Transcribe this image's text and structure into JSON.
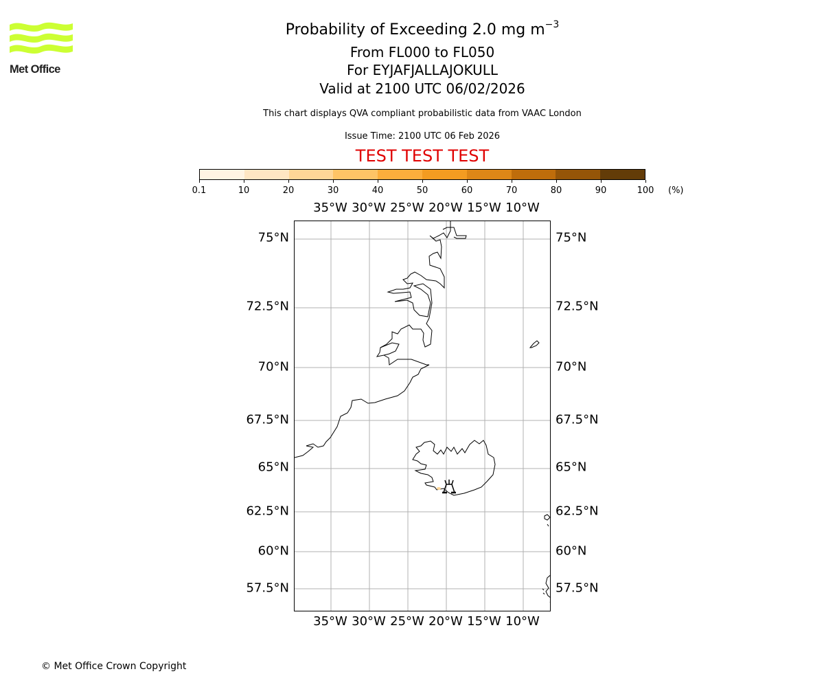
{
  "logo": {
    "text": "Met Office",
    "color": "#ccff33"
  },
  "header": {
    "title": "Probability of Exceeding 2.0 mg m",
    "title_superscript": "−3",
    "levels": "From FL000 to FL050",
    "volcano": "For EYJAFJALLAJOKULL",
    "valid": "Valid at 2100 UTC 06/02/2026",
    "note": "This chart displays QVA compliant probabilistic data from VAAC London",
    "issue_time": "Issue Time: 2100 UTC 06 Feb 2026",
    "test_banner": "TEST TEST TEST",
    "test_color": "#e00000"
  },
  "colorbar": {
    "unit": "(%)",
    "ticks": [
      "0.1",
      "10",
      "20",
      "30",
      "40",
      "50",
      "60",
      "70",
      "80",
      "90",
      "100"
    ],
    "colors": [
      "#fff4e3",
      "#fee6c3",
      "#fed697",
      "#fec466",
      "#fcae3c",
      "#f39c21",
      "#dd8717",
      "#bf6d0b",
      "#955508",
      "#633c08"
    ]
  },
  "map": {
    "lon_labels": [
      "35°W",
      "30°W",
      "25°W",
      "20°W",
      "15°W",
      "10°W"
    ],
    "lat_labels": [
      "75°N",
      "72.5°N",
      "70°N",
      "67.5°N",
      "65°N",
      "62.5°N",
      "60°N",
      "57.5°N"
    ],
    "volcano_marker": "volcano-symbol",
    "ash_probability_area": "small 0.1–10% patch south-west of volcano"
  },
  "footer": {
    "copyright": "© Met Office Crown Copyright"
  }
}
